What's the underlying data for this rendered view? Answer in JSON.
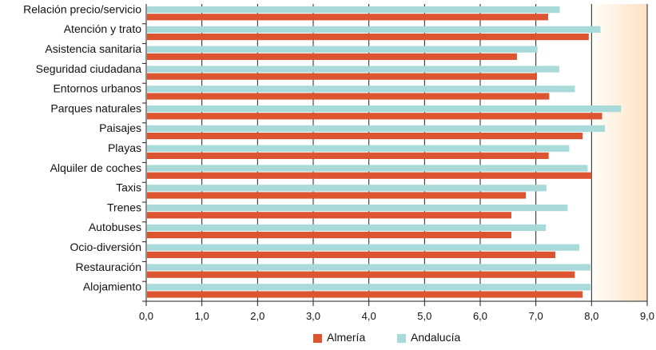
{
  "chart_data": {
    "type": "bar",
    "orientation": "horizontal",
    "categories": [
      "Relación precio/servicio",
      "Atención y trato",
      "Asistencia sanitaria",
      "Seguridad ciudadana",
      "Entornos urbanos",
      "Parques naturales",
      "Paisajes",
      "Playas",
      "Alquiler de coches",
      "Taxis",
      "Trenes",
      "Autobuses",
      "Ocio-diversión",
      "Restauración",
      "Alojamiento"
    ],
    "series": [
      {
        "name": "Andalucía",
        "color": "#a8dada",
        "values": [
          7.43,
          8.16,
          7.03,
          7.42,
          7.7,
          8.53,
          8.24,
          7.6,
          7.93,
          7.19,
          7.57,
          7.18,
          7.78,
          7.98,
          7.98
        ]
      },
      {
        "name": "Almería",
        "color": "#dd5530",
        "values": [
          7.22,
          7.95,
          6.66,
          7.02,
          7.24,
          8.19,
          7.84,
          7.23,
          8.0,
          6.82,
          6.56,
          6.56,
          7.35,
          7.7,
          7.84
        ]
      }
    ],
    "xlim": [
      0,
      9
    ],
    "x_ticks": [
      "0,0",
      "1,0",
      "2,0",
      "3,0",
      "4,0",
      "5,0",
      "6,0",
      "7,0",
      "8,0",
      "9,0"
    ],
    "legend_position": "bottom-center",
    "legend": [
      {
        "name": "Almería",
        "color": "#dd5530"
      },
      {
        "name": "Andalucía",
        "color": "#a8dada"
      }
    ],
    "background_highlight": {
      "from": 8,
      "to": 9,
      "color": "#fde2c2"
    },
    "grid": true
  }
}
